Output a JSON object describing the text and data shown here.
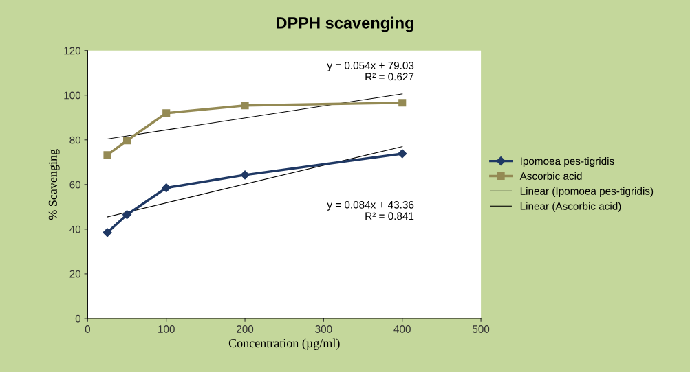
{
  "chart_data": {
    "type": "line",
    "title": "DPPH scavenging",
    "xlabel": "Concentration (µg/ml)",
    "ylabel": "% Scavenging",
    "xlim": [
      0,
      500
    ],
    "xticks": [
      0,
      100,
      200,
      300,
      400,
      500
    ],
    "ylim": [
      0,
      120
    ],
    "yticks": [
      0,
      20,
      40,
      60,
      80,
      100,
      120
    ],
    "grid": false,
    "legend": "right",
    "series": [
      {
        "name": "Ipomoea pes-tigridis",
        "color": "#1f3864",
        "marker": "diamond",
        "x": [
          25,
          50,
          100,
          200,
          400
        ],
        "values": [
          38.5,
          46.5,
          58.5,
          64.3,
          73.8
        ]
      },
      {
        "name": "Ascorbic acid",
        "color": "#948a54",
        "marker": "square",
        "x": [
          25,
          50,
          100,
          200,
          400
        ],
        "values": [
          73.2,
          79.7,
          92.0,
          95.4,
          96.6
        ]
      },
      {
        "name": "Linear (Ipomoea pes-tigridis)",
        "color": "#000000",
        "marker": "none",
        "x": [
          25,
          400
        ],
        "values": [
          45.5,
          77.0
        ]
      },
      {
        "name": "Linear (Ascorbic acid)",
        "color": "#000000",
        "marker": "none",
        "x": [
          25,
          400
        ],
        "values": [
          80.4,
          100.6
        ]
      }
    ],
    "annotations": [
      "y = 0.054x + 79.03\nR² = 0.627",
      "y = 0.084x + 43.36\nR² = 0.841"
    ]
  }
}
